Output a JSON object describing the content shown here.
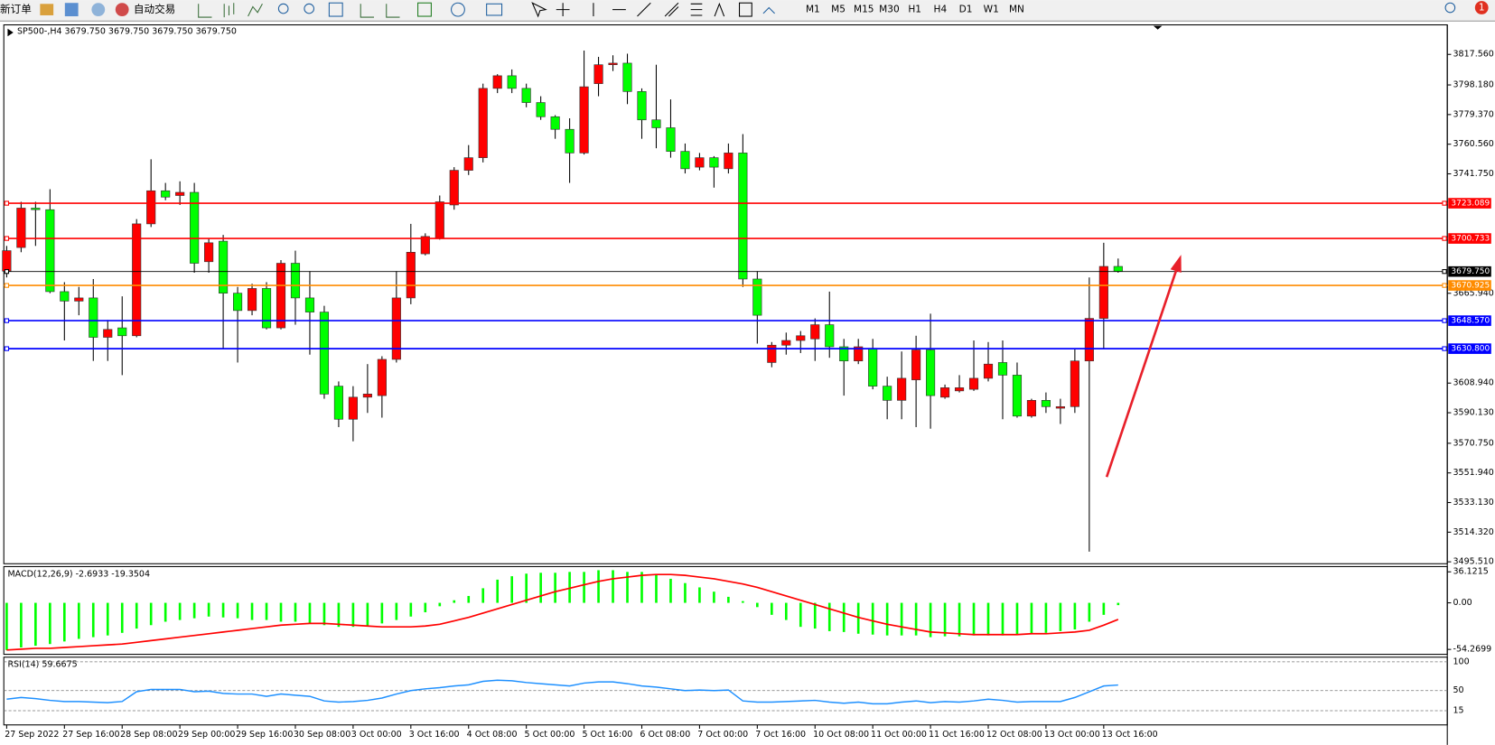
{
  "toolbar": {
    "new_order": "新订单",
    "auto_trading": "自动交易",
    "timeframes": [
      "M1",
      "M5",
      "M15",
      "M30",
      "H1",
      "H4",
      "D1",
      "W1",
      "MN"
    ],
    "notifications": "1"
  },
  "chart_data": [
    {
      "type": "candlestick",
      "title": "SP500-,H4 3679.750 3679.750 3679.750 3679.750",
      "categories": [
        "27 Sep 2022",
        null,
        null,
        null,
        "27 Sep 16:00",
        null,
        null,
        null,
        "28 Sep 08:00",
        null,
        null,
        null,
        "29 Sep 00:00",
        null,
        null,
        null,
        "29 Sep 16:00",
        null,
        null,
        null,
        "30 Sep 08:00",
        null,
        null,
        null,
        "3 Oct 00:00",
        null,
        null,
        null,
        "3 Oct 16:00",
        null,
        null,
        null,
        "4 Oct 08:00",
        null,
        null,
        null,
        "5 Oct 00:00",
        null,
        null,
        null,
        "5 Oct 16:00",
        null,
        null,
        null,
        "6 Oct 08:00",
        null,
        null,
        null,
        "7 Oct 00:00",
        null,
        null,
        null,
        "7 Oct 16:00",
        null,
        null,
        null,
        "10 Oct 08:00",
        null,
        null,
        null,
        "11 Oct 00:00",
        null,
        null,
        null,
        "11 Oct 16:00",
        null,
        null,
        null,
        "12 Oct 08:00",
        null,
        null,
        null,
        "13 Oct 00:00",
        null,
        null,
        null,
        "13 Oct 16:00",
        null
      ],
      "open": [
        3680,
        3695,
        3720,
        3719,
        3667,
        3661,
        3663,
        3638,
        3644,
        3639,
        3710,
        3731,
        3728,
        3730,
        3686,
        3699,
        3666,
        3655,
        3669,
        3644,
        3685,
        3663,
        3654,
        3607,
        3586,
        3600,
        3601,
        3624,
        3663,
        3691,
        3701,
        3722,
        3744,
        3752,
        3796,
        3804,
        3796,
        3787,
        3778,
        3770,
        3755,
        3799,
        3811,
        3812,
        3794,
        3776,
        3771,
        3756,
        3746,
        3752,
        3745,
        3755,
        3675,
        3622,
        3633,
        3636,
        3637,
        3646,
        3632,
        3623,
        3631,
        3607,
        3598,
        3611,
        3630,
        3600,
        3604,
        3605,
        3612,
        3622,
        3614,
        3588,
        3598,
        3593,
        3594,
        3623,
        3650,
        3683
      ],
      "high": [
        3696,
        3724,
        3724,
        3732,
        3673,
        3670,
        3675,
        3649,
        3664,
        3713,
        3751,
        3736,
        3737,
        3736,
        3701,
        3703,
        3670,
        3672,
        3673,
        3687,
        3693,
        3680,
        3658,
        3610,
        3607,
        3621,
        3626,
        3680,
        3710,
        3704,
        3728,
        3746,
        3760,
        3799,
        3805,
        3808,
        3799,
        3791,
        3779,
        3777,
        3820,
        3816,
        3817,
        3818,
        3796,
        3811,
        3789,
        3761,
        3755,
        3753,
        3761,
        3767,
        3680,
        3635,
        3641,
        3642,
        3650,
        3667,
        3637,
        3637,
        3637,
        3613,
        3629,
        3639,
        3653,
        3608,
        3614,
        3636,
        3635,
        3636,
        3622,
        3599,
        3603,
        3599,
        3631,
        3676,
        3698,
        3688
      ],
      "low": [
        3676,
        3692,
        3696,
        3666,
        3636,
        3652,
        3623,
        3623,
        3614,
        3638,
        3708,
        3725,
        3722,
        3679,
        3679,
        3631,
        3622,
        3652,
        3643,
        3643,
        3646,
        3627,
        3599,
        3581,
        3572,
        3590,
        3587,
        3622,
        3659,
        3690,
        3700,
        3719,
        3741,
        3749,
        3793,
        3793,
        3784,
        3776,
        3764,
        3736,
        3754,
        3791,
        3807,
        3786,
        3764,
        3758,
        3752,
        3742,
        3744,
        3733,
        3742,
        3670,
        3634,
        3619,
        3627,
        3628,
        3623,
        3625,
        3601,
        3621,
        3605,
        3586,
        3586,
        3581,
        3580,
        3599,
        3603,
        3604,
        3610,
        3586,
        3587,
        3587,
        3590,
        3583,
        3590,
        3502,
        3631,
        3679
      ],
      "close": [
        3693,
        3720,
        3719,
        3667,
        3661,
        3663,
        3638,
        3643,
        3639,
        3710,
        3731,
        3727,
        3730,
        3685,
        3698,
        3666,
        3655,
        3669,
        3644,
        3685,
        3663,
        3654,
        3602,
        3586,
        3600,
        3602,
        3624,
        3663,
        3692,
        3702,
        3724,
        3744,
        3752,
        3796,
        3804,
        3796,
        3787,
        3778,
        3770,
        3755,
        3797,
        3811,
        3812,
        3794,
        3776,
        3771,
        3756,
        3745,
        3752,
        3746,
        3755,
        3675,
        3652,
        3633,
        3636,
        3639,
        3646,
        3632,
        3623,
        3632,
        3607,
        3598,
        3612,
        3630,
        3601,
        3606,
        3606,
        3612,
        3621,
        3614,
        3588,
        3598,
        3594,
        3594,
        3623,
        3650,
        3683,
        3679.75
      ],
      "up_color": "#ff0000",
      "down_color": "#00ff00",
      "ylim": [
        3494.3,
        3835.7
      ],
      "yticks": [
        {
          "value": 3817.56,
          "label": "3817.560"
        },
        {
          "value": 3798.18,
          "label": "3798.180"
        },
        {
          "value": 3779.37,
          "label": "3779.370"
        },
        {
          "value": 3760.56,
          "label": "3760.560"
        },
        {
          "value": 3741.75,
          "label": "3741.750"
        },
        {
          "value": 3665.94,
          "label": "3665.940"
        },
        {
          "value": 3608.94,
          "label": "3608.940"
        },
        {
          "value": 3590.13,
          "label": "3590.130"
        },
        {
          "value": 3570.75,
          "label": "3570.750"
        },
        {
          "value": 3551.94,
          "label": "3551.940"
        },
        {
          "value": 3533.13,
          "label": "3533.130"
        },
        {
          "value": 3514.32,
          "label": "3514.320"
        },
        {
          "value": 3495.51,
          "label": "3495.510"
        }
      ],
      "levels": [
        {
          "value": 3723.089,
          "label": "3723.089",
          "color": "#ff0000"
        },
        {
          "value": 3700.733,
          "label": "3700.733",
          "color": "#ff0000"
        },
        {
          "value": 3679.75,
          "label": "3679.750",
          "color": "#000000"
        },
        {
          "value": 3670.925,
          "label": "3670.925",
          "color": "#ff8c00"
        },
        {
          "value": 3648.57,
          "label": "3648.570",
          "color": "#0000ff"
        },
        {
          "value": 3630.8,
          "label": "3630.800",
          "color": "#0000ff"
        }
      ]
    },
    {
      "type": "combo",
      "title": "MACD(12,26,9) -2.6933 -19.3504",
      "series": [
        {
          "kind": "bar",
          "color": "#00ff00",
          "values": [
            -55,
            -52,
            -50,
            -48,
            -45,
            -42,
            -40,
            -38,
            -35,
            -30,
            -26,
            -22,
            -20,
            -18,
            -16,
            -17,
            -18,
            -20,
            -20,
            -22,
            -22,
            -24,
            -26,
            -28,
            -28,
            -27,
            -24,
            -20,
            -16,
            -11,
            -4,
            3,
            8,
            17,
            27,
            31,
            34,
            35,
            35,
            36,
            36,
            38,
            38,
            36,
            36,
            33,
            28,
            23,
            18,
            13,
            7,
            2,
            -5,
            -14,
            -20,
            -28,
            -30,
            -33,
            -34,
            -36,
            -37,
            -38,
            -38,
            -38,
            -40,
            -39,
            -39,
            -38,
            -38,
            -38,
            -37,
            -36,
            -35,
            -33,
            -31,
            -22,
            -14,
            -2.6933
          ]
        },
        {
          "kind": "line",
          "color": "#ff0000",
          "values": [
            -55,
            -54,
            -53,
            -53,
            -52,
            -51,
            -50,
            -49,
            -48,
            -46,
            -44,
            -42,
            -40,
            -38,
            -36,
            -34,
            -32,
            -30,
            -28,
            -26,
            -25,
            -24,
            -24,
            -25,
            -26,
            -27,
            -28,
            -28,
            -28,
            -27,
            -25,
            -21,
            -17,
            -12,
            -7,
            -2,
            3,
            8,
            13,
            17,
            21,
            25,
            28,
            30,
            32,
            33,
            33,
            32,
            30,
            28,
            25,
            22,
            18,
            13,
            8,
            3,
            -2,
            -7,
            -12,
            -17,
            -21,
            -25,
            -28,
            -31,
            -34,
            -35,
            -36,
            -37,
            -37,
            -37,
            -37,
            -36,
            -36,
            -35,
            -34,
            -32,
            -26,
            -19.3504
          ]
        }
      ],
      "ylim": [
        -60,
        40
      ],
      "yticks": [
        36.1215,
        {
          "value": 0,
          "label": "0.00"
        },
        -54.2699
      ]
    },
    {
      "type": "line",
      "title": "RSI(14) 59.6675",
      "color": "#1e90ff",
      "values": [
        35,
        38,
        36,
        33,
        31,
        31,
        30,
        29,
        31,
        48,
        52,
        52,
        52,
        48,
        49,
        45,
        44,
        44,
        40,
        44,
        42,
        40,
        32,
        30,
        31,
        33,
        37,
        44,
        50,
        53,
        55,
        58,
        60,
        66,
        68,
        67,
        64,
        62,
        60,
        58,
        63,
        65,
        65,
        62,
        58,
        56,
        53,
        50,
        51,
        50,
        51,
        32,
        30,
        30,
        31,
        32,
        33,
        30,
        28,
        30,
        27,
        27,
        30,
        32,
        29,
        31,
        30,
        32,
        35,
        33,
        30,
        31,
        31,
        31,
        38,
        48,
        58,
        59.6675
      ],
      "ylim": [
        -8,
        108
      ],
      "yticks": [
        100,
        50,
        15
      ],
      "grid": true
    }
  ]
}
